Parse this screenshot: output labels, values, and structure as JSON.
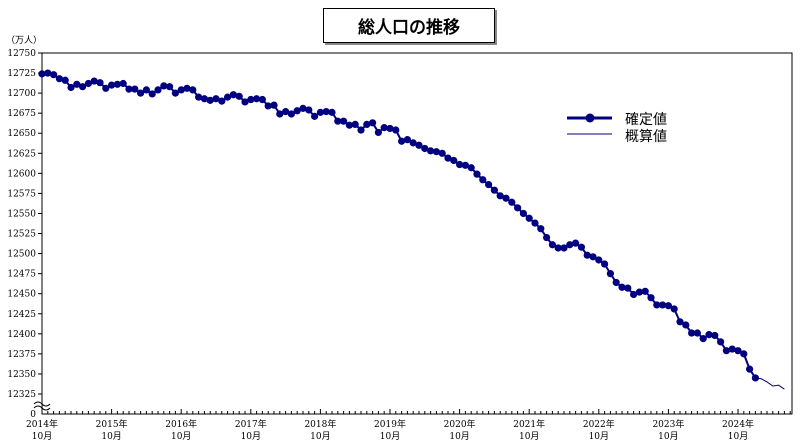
{
  "chart_data": {
    "type": "line",
    "title": "総人口の推移",
    "ylabel": "（万人）",
    "ylim": [
      12325,
      12750
    ],
    "yticks": [
      12750,
      12725,
      12700,
      12675,
      12650,
      12625,
      12600,
      12575,
      12550,
      12525,
      12500,
      12475,
      12450,
      12425,
      12400,
      12375,
      12350,
      12325
    ],
    "y_axis_break_bottom_label": "0",
    "x_start": "2014-10",
    "x_interval": "month",
    "xticks": [
      {
        "year": "2014年",
        "month": "10月"
      },
      {
        "year": "2015年",
        "month": "10月"
      },
      {
        "year": "2016年",
        "month": "10月"
      },
      {
        "year": "2017年",
        "month": "10月"
      },
      {
        "year": "2018年",
        "month": "10月"
      },
      {
        "year": "2019年",
        "month": "10月"
      },
      {
        "year": "2020年",
        "month": "10月"
      },
      {
        "year": "2021年",
        "month": "10月"
      },
      {
        "year": "2022年",
        "month": "10月"
      },
      {
        "year": "2023年",
        "month": "10月"
      },
      {
        "year": "2024年",
        "month": "10月"
      }
    ],
    "legend_position": "upper-right",
    "colors": {
      "series": "#000080"
    },
    "series": [
      {
        "name": "確定値",
        "style": "line-with-markers",
        "values": [
          12724,
          12725,
          12723,
          12718,
          12716,
          12707,
          12711,
          12708,
          12712,
          12715,
          12713,
          12706,
          12710,
          12711,
          12712,
          12705,
          12705,
          12700,
          12704,
          12699,
          12704,
          12709,
          12708,
          12700,
          12704,
          12706,
          12704,
          12695,
          12693,
          12691,
          12693,
          12690,
          12695,
          12698,
          12696,
          12689,
          12692,
          12693,
          12692,
          12684,
          12685,
          12674,
          12677,
          12674,
          12678,
          12681,
          12679,
          12671,
          12676,
          12677,
          12676,
          12665,
          12665,
          12660,
          12661,
          12654,
          12661,
          12663,
          12651,
          12657,
          12656,
          12654,
          12640,
          12642,
          12638,
          12635,
          12631,
          12628,
          12627,
          12625,
          12619,
          12616,
          12611,
          12610,
          12607,
          12599,
          12592,
          12586,
          12579,
          12572,
          12569,
          12564,
          12557,
          12550,
          12544,
          12538,
          12531,
          12520,
          12511,
          12507,
          12507,
          12511,
          12513,
          12508,
          12498,
          12496,
          12492,
          12487,
          12475,
          12464,
          12458,
          12457,
          12449,
          12452,
          12453,
          12445,
          12436,
          12436,
          12435,
          12431,
          12415,
          12411,
          12401,
          12401,
          12394,
          12399,
          12398,
          12390,
          12379,
          12381,
          12379,
          12375,
          12356,
          12345
        ]
      },
      {
        "name": "概算値",
        "style": "line",
        "start_index": 123,
        "values": [
          12345,
          12344,
          12340,
          12335,
          12336,
          12331
        ]
      }
    ]
  }
}
